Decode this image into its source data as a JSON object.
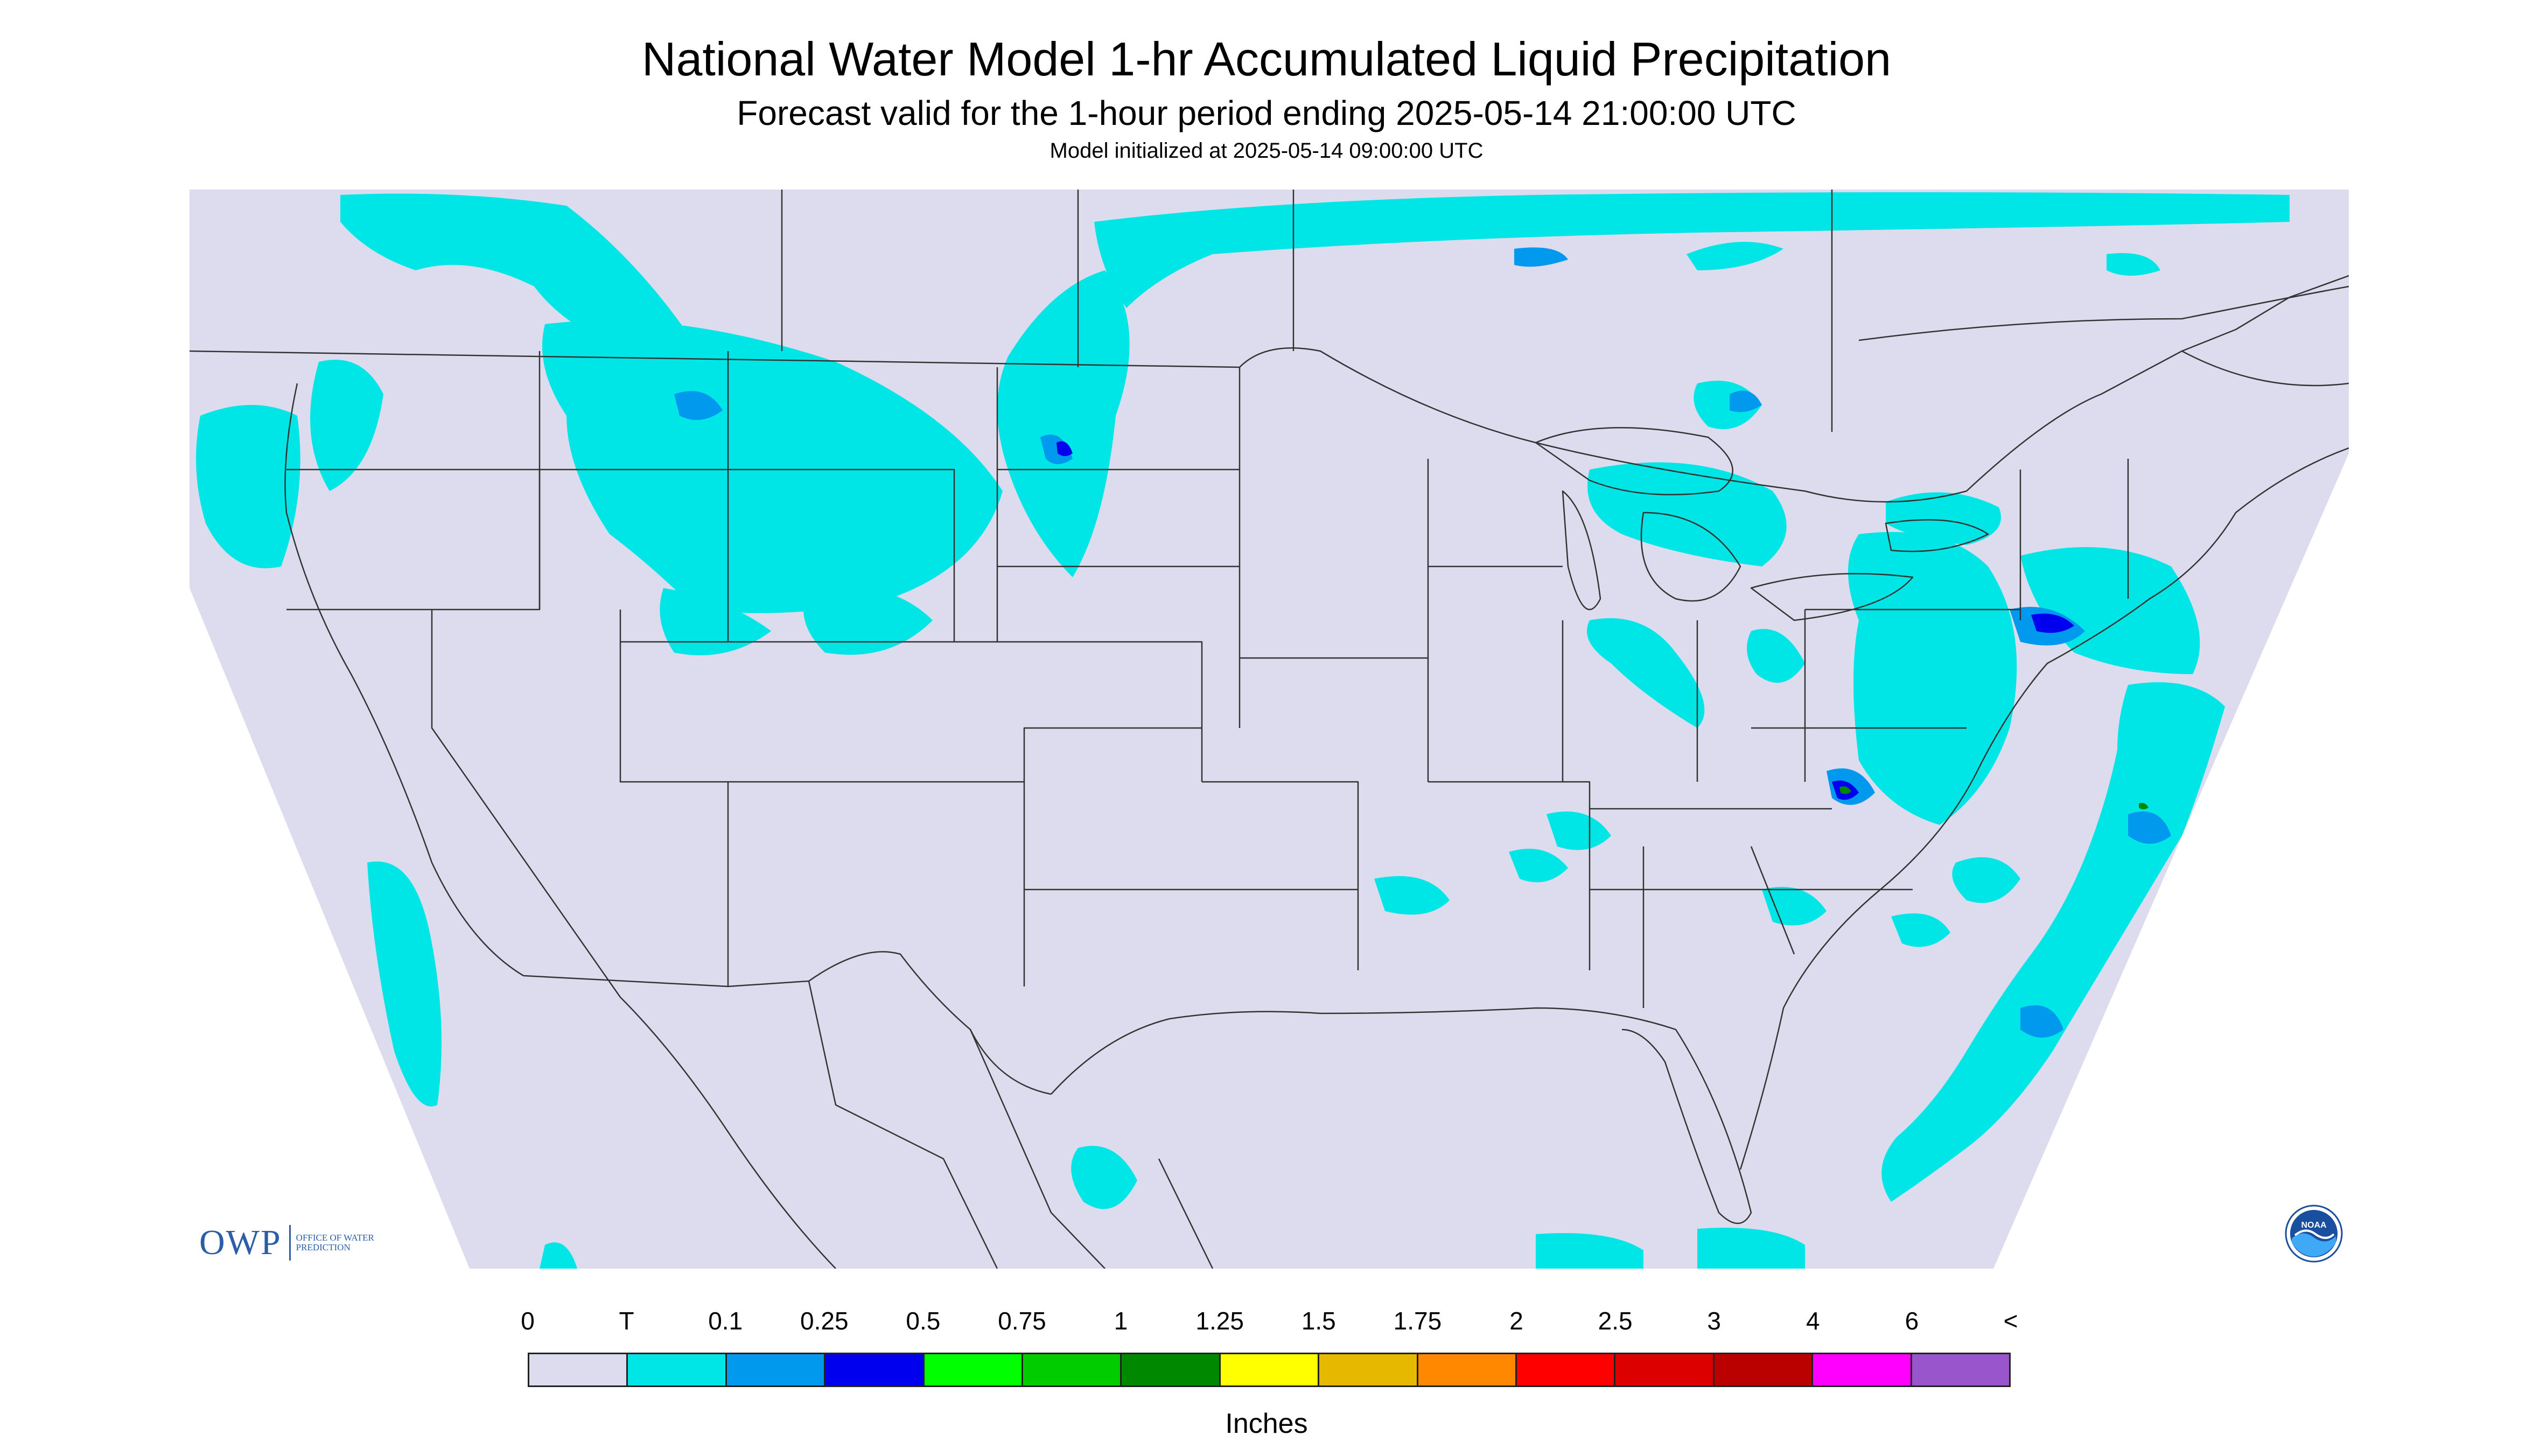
{
  "header": {
    "title": "National Water Model 1-hr Accumulated Liquid Precipitation",
    "subtitle": "Forecast valid for the 1-hour period ending 2025-05-14 21:00:00 UTC",
    "init": "Model initialized at 2025-05-14 09:00:00 UTC"
  },
  "logos": {
    "owp_mark": "OWP",
    "owp_text": "Office of Water Prediction",
    "noaa_text": "NOAA"
  },
  "legend": {
    "units": "Inches",
    "labels": [
      "0",
      "T",
      "0.1",
      "0.25",
      "0.5",
      "0.75",
      "1",
      "1.25",
      "1.5",
      "1.75",
      "2",
      "2.5",
      "3",
      "4",
      "6",
      "<"
    ],
    "colors": [
      "#dcdcee",
      "#00e5e5",
      "#0099ee",
      "#0000ee",
      "#00ff00",
      "#00cc00",
      "#008800",
      "#ffff00",
      "#e6b800",
      "#ff8800",
      "#ff0000",
      "#dd0000",
      "#bb0000",
      "#ff00ff",
      "#9955cc"
    ]
  },
  "map": {
    "background_color": "#dcdcee",
    "outside_color": "#ffffff",
    "boundary_color": "#333333",
    "precip_colors": {
      "trace": "#00e5e5",
      "light": "#0099ee",
      "moderate": "#0000ee",
      "heavy": "#008800"
    }
  }
}
